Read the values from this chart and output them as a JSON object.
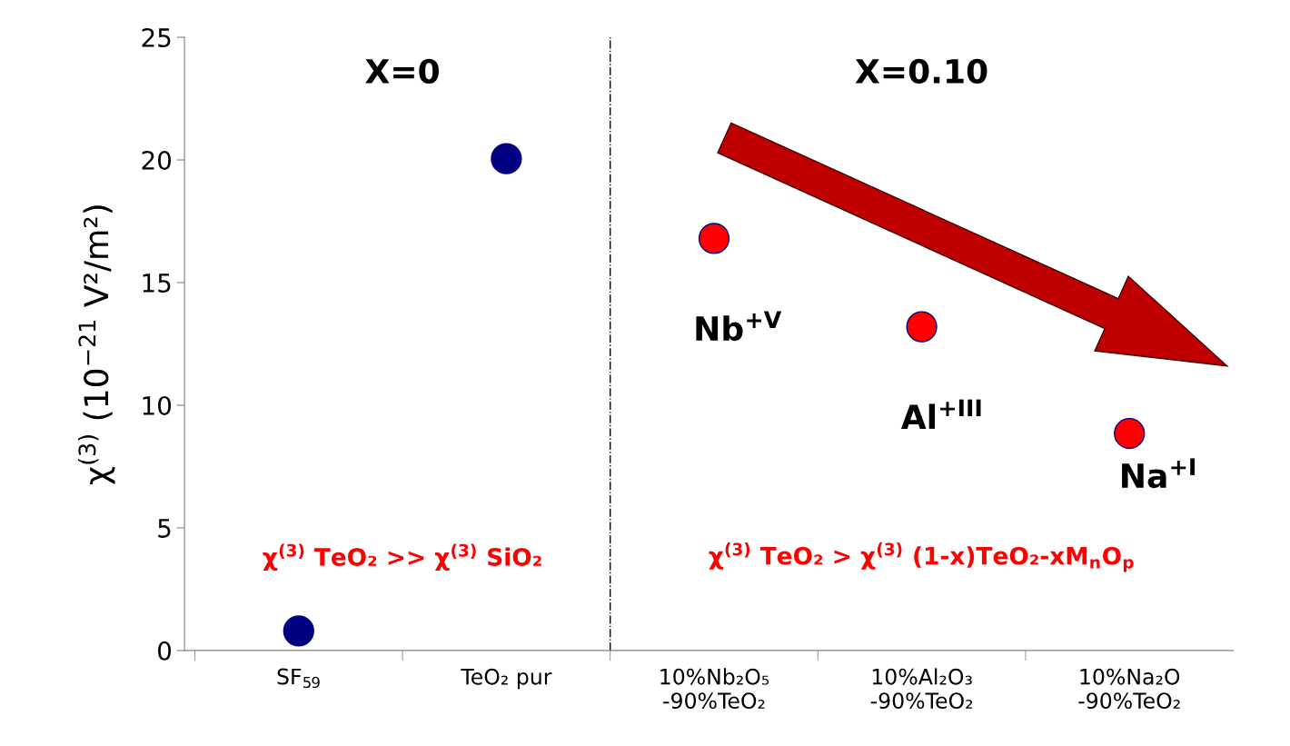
{
  "chart_data": {
    "type": "scatter",
    "categories": [
      "SF$_{59}$",
      "TeO₂ pur",
      "10%Nb₂O₅\n-90%TeO₂",
      "10%Al₂O₃\n-90%TeO₂",
      "10%Na₂O\n-90%TeO₂"
    ],
    "series": [
      {
        "color": "#000080",
        "values": [
          0.8,
          20.05,
          null,
          null,
          null
        ]
      },
      {
        "color": "#ff0000",
        "values": [
          null,
          null,
          16.8,
          13.2,
          8.85
        ]
      }
    ],
    "ylabel": "χ$^{(3)}$ (10$^{−21}$ V²/m²)",
    "ylim": [
      0,
      25
    ],
    "yticks": [
      0,
      5,
      10,
      15,
      20,
      25
    ],
    "marker": "circle",
    "grid": false,
    "annotations": [
      "X=0",
      "X=0.10",
      "Nb$^{+V}$",
      "Al$^{+III}$",
      "Na$^{+I}$",
      "χ$^{(3)}$ TeO₂ >> χ$^{(3)}$ SiO₂",
      "χ$^{(3)}$ TeO₂ > χ$^{(3)}$ (1-x)TeO₂-xM$_{n}$O$_{p}$"
    ]
  }
}
